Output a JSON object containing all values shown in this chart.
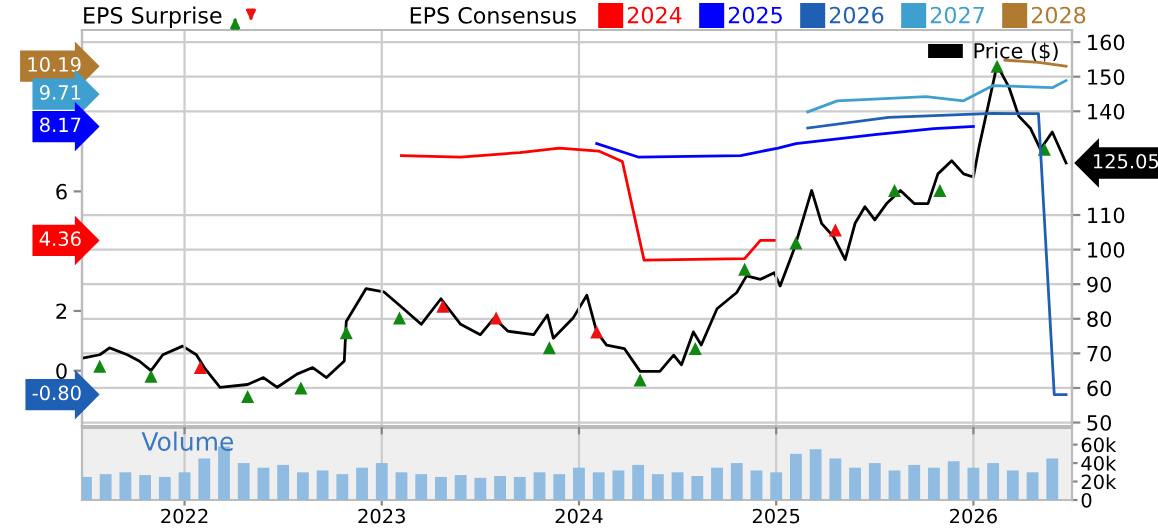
{
  "chart_data": [
    {
      "type": "line",
      "title": "EPS Surprise",
      "annotations": [
        "4.36",
        "8.17",
        "-0.80",
        "9.71",
        "10.19"
      ],
      "legend_title": "EPS Consensus",
      "legend": "top",
      "grid": true,
      "tick_labels": "y",
      "xlim": [
        2021.48,
        2026.5
      ],
      "xticks": [
        2022,
        2023,
        2024,
        2025,
        2026
      ],
      "ylim": [
        -1.85,
        11.4
      ],
      "yticks": [
        0,
        2,
        6
      ],
      "y2lim": [
        49,
        163.5
      ],
      "y2ticks": [
        50,
        60,
        70,
        80,
        90,
        100,
        110,
        140,
        150,
        160
      ],
      "series": [
        {
          "name": "2024",
          "color": "#ff0000",
          "x": [
            2023.1,
            2023.4,
            2023.7,
            2023.9,
            2024.1,
            2024.22,
            2024.33,
            2024.84,
            2024.92,
            2024.99
          ],
          "values": [
            7.2,
            7.15,
            7.3,
            7.45,
            7.35,
            7.0,
            3.7,
            3.75,
            4.36,
            4.36
          ]
        },
        {
          "name": "2025",
          "color": "#0000ff",
          "x": [
            2024.09,
            2024.3,
            2024.82,
            2025.01,
            2025.1,
            2025.5,
            2025.8,
            2026.0
          ],
          "values": [
            7.6,
            7.15,
            7.2,
            7.45,
            7.6,
            7.9,
            8.1,
            8.17
          ]
        },
        {
          "name": "2026",
          "color": "#1f5fb4",
          "x": [
            2025.16,
            2025.57,
            2026.1,
            2026.33,
            2026.41,
            2026.47
          ],
          "values": [
            8.12,
            8.48,
            8.61,
            8.6,
            -0.8,
            -0.8
          ]
        },
        {
          "name": "2027",
          "color": "#3fa0d0",
          "x": [
            2025.16,
            2025.31,
            2025.76,
            2025.95,
            2026.1,
            2026.4,
            2026.47
          ],
          "values": [
            8.66,
            9.03,
            9.17,
            9.03,
            9.54,
            9.47,
            9.71
          ]
        },
        {
          "name": "2028",
          "color": "#b07a30",
          "x": [
            2026.16,
            2026.33,
            2026.47
          ],
          "values": [
            10.39,
            10.32,
            10.19
          ]
        },
        {
          "name": "Price ($)",
          "color": "#000000",
          "axis": "y2",
          "x": [
            2021.49,
            2021.57,
            2021.62,
            2021.71,
            2021.77,
            2021.83,
            2021.89,
            2021.99,
            2022.06,
            2022.1,
            2022.18,
            2022.32,
            2022.4,
            2022.47,
            2022.57,
            2022.65,
            2022.72,
            2022.81,
            2022.82,
            2022.92,
            2023.01,
            2023.09,
            2023.2,
            2023.3,
            2023.4,
            2023.5,
            2023.57,
            2023.64,
            2023.77,
            2023.84,
            2023.87,
            2023.97,
            2024.04,
            2024.09,
            2024.14,
            2024.23,
            2024.31,
            2024.41,
            2024.48,
            2024.52,
            2024.58,
            2024.62,
            2024.7,
            2024.8,
            2024.85,
            2024.92,
            2024.99,
            2025.02,
            2025.09,
            2025.18,
            2025.23,
            2025.29,
            2025.35,
            2025.4,
            2025.45,
            2025.5,
            2025.56,
            2025.63,
            2025.7,
            2025.77,
            2025.82,
            2025.89,
            2025.95,
            2026.0,
            2026.03,
            2026.12,
            2026.18,
            2026.23,
            2026.29,
            2026.34,
            2026.4,
            2026.47
          ],
          "values": [
            68.7,
            69.6,
            71.6,
            69.6,
            67.8,
            65,
            69.6,
            72.1,
            69.6,
            65.9,
            60.2,
            61,
            63,
            60.2,
            64,
            65.9,
            63,
            67.8,
            79.2,
            88.7,
            87.8,
            83.9,
            78.4,
            85.8,
            78.4,
            75.4,
            80.2,
            76.4,
            75.4,
            81.1,
            74.4,
            80.2,
            86.8,
            76.2,
            72.4,
            71.4,
            64.8,
            64.8,
            69.5,
            66.7,
            76.2,
            72.4,
            82.9,
            87.6,
            92.4,
            91.4,
            93.3,
            89.5,
            100,
            117.1,
            107.6,
            103.8,
            97.1,
            107.6,
            112.4,
            108.6,
            113.3,
            117.1,
            113.3,
            113.3,
            121.9,
            125.7,
            121.9,
            121,
            130,
            153.4,
            147,
            138.6,
            135,
            129,
            134,
            125.05
          ],
          "value_labels": [
            null,
            null,
            null,
            null,
            null,
            null,
            null,
            null,
            null,
            null,
            null,
            null,
            null,
            null,
            null,
            null,
            null,
            null,
            null,
            null,
            null,
            null,
            null,
            null,
            null,
            null,
            null,
            null,
            null,
            null,
            null,
            null,
            null,
            null,
            null,
            null,
            null,
            null,
            null,
            null,
            null,
            null,
            null,
            null,
            null,
            null,
            null,
            null,
            null,
            null,
            null,
            null,
            null,
            null,
            null,
            null,
            null,
            null,
            null,
            null,
            null,
            null,
            null,
            null,
            null,
            null,
            null,
            null,
            null,
            null,
            null,
            "125.05"
          ]
        },
        {
          "type": "scatter",
          "color": "#118811",
          "marker": "triangle",
          "axis": "y2",
          "x": [
            2021.57,
            2021.83,
            2022.32,
            2022.59,
            2022.82,
            2023.09,
            2023.85,
            2024.31,
            2024.59,
            2024.84,
            2025.1,
            2025.6,
            2025.83,
            2026.12,
            2026.36
          ],
          "values": [
            66.3,
            63.4,
            57.5,
            60,
            76,
            80.2,
            71.6,
            62.3,
            71.4,
            94.3,
            101.9,
            117.1,
            117.1,
            153,
            129
          ]
        },
        {
          "type": "scatter",
          "color": "#ee1111",
          "marker": "triangle",
          "axis": "y2",
          "x": [
            2022.08,
            2023.31,
            2023.58,
            2024.09,
            2025.3
          ],
          "values": [
            65.9,
            83.6,
            80.2,
            76.2,
            105.7
          ]
        }
      ]
    },
    {
      "type": "bar",
      "title": "Volume",
      "color": "#8fbce0",
      "grid": "x",
      "xlim": [
        2021.48,
        2026.5
      ],
      "xticks": [
        2022,
        2023,
        2024,
        2025,
        2026
      ],
      "ylim": [
        0,
        78
      ],
      "yticks": [
        0,
        {
          "value": 20,
          "label": "20k"
        },
        {
          "value": 40,
          "label": "40k"
        },
        {
          "value": 60,
          "label": "60k"
        }
      ],
      "x": [
        2021.5,
        2021.6,
        2021.7,
        2021.8,
        2021.9,
        2022.0,
        2022.1,
        2022.2,
        2022.3,
        2022.4,
        2022.5,
        2022.6,
        2022.7,
        2022.8,
        2022.9,
        2023.0,
        2023.1,
        2023.2,
        2023.3,
        2023.4,
        2023.5,
        2023.6,
        2023.7,
        2023.8,
        2023.9,
        2024.0,
        2024.1,
        2024.2,
        2024.3,
        2024.4,
        2024.5,
        2024.6,
        2024.7,
        2024.8,
        2024.9,
        2025.0,
        2025.1,
        2025.2,
        2025.3,
        2025.4,
        2025.5,
        2025.6,
        2025.7,
        2025.8,
        2025.9,
        2026.0,
        2026.1,
        2026.2,
        2026.3,
        2026.4
      ],
      "values": [
        25,
        28,
        30,
        27,
        25,
        30,
        45,
        58,
        40,
        35,
        38,
        30,
        32,
        28,
        35,
        40,
        30,
        28,
        25,
        27,
        24,
        26,
        25,
        30,
        28,
        35,
        30,
        32,
        38,
        28,
        30,
        26,
        35,
        40,
        32,
        30,
        50,
        55,
        45,
        35,
        40,
        32,
        38,
        35,
        42,
        35,
        40,
        32,
        30,
        45
      ]
    }
  ]
}
